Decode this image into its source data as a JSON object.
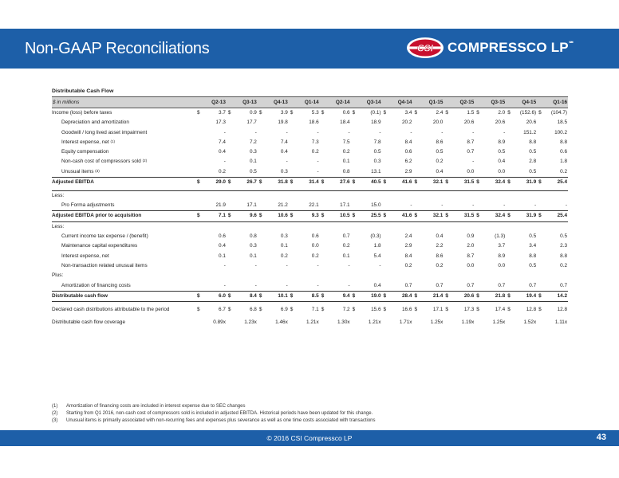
{
  "slide": {
    "title": "Non-GAAP Reconciliations",
    "logo_text": "COMPRESSCO LP",
    "logo_tm": "℠",
    "logo_badge": "CSI",
    "footer_text": "© 2016 CSI Compressco LP",
    "page_number": "43",
    "brand_color": "#1d5fa8"
  },
  "table": {
    "section_title": "Distributable Cash Flow",
    "units_label": "$ in millions",
    "columns": [
      "Q2-13",
      "Q3-13",
      "Q4-13",
      "Q1-14",
      "Q2-14",
      "Q3-14",
      "Q4-14",
      "Q1-15",
      "Q2-15",
      "Q3-15",
      "Q4-15",
      "Q1-16"
    ],
    "rows": [
      {
        "label": "Income (loss) before taxes",
        "values": [
          "3.7",
          "0.9",
          "3.9",
          "5.3",
          "0.6",
          "(0.1)",
          "3.4",
          "2.4",
          "1.5",
          "2.0",
          "(152.6)",
          "(104.7)"
        ],
        "dollar": true
      },
      {
        "label": "Depreciation and amortization",
        "values": [
          "17.3",
          "17.7",
          "19.8",
          "18.6",
          "18.4",
          "18.9",
          "20.2",
          "20.0",
          "20.6",
          "20.6",
          "20.6",
          "18.5"
        ],
        "indent": true
      },
      {
        "label": "Goodwill / long lived asset impairment",
        "values": [
          "-",
          "-",
          "-",
          "-",
          "-",
          "-",
          "-",
          "-",
          "-",
          "-",
          "151.2",
          "100.2"
        ],
        "indent": true
      },
      {
        "label": "Interest expense, net",
        "sup": "(1)",
        "values": [
          "7.4",
          "7.2",
          "7.4",
          "7.3",
          "7.5",
          "7.8",
          "8.4",
          "8.6",
          "8.7",
          "8.9",
          "8.8",
          "8.8"
        ],
        "indent": true
      },
      {
        "label": "Equity compensation",
        "values": [
          "0.4",
          "0.3",
          "0.4",
          "0.2",
          "0.2",
          "0.5",
          "0.6",
          "0.5",
          "0.7",
          "0.5",
          "0.5",
          "0.6"
        ],
        "indent": true
      },
      {
        "label": "Non-cash cost of compressors sold",
        "sup": "(2)",
        "values": [
          "-",
          "0.1",
          "-",
          "-",
          "0.1",
          "0.3",
          "6.2",
          "0.2",
          "-",
          "0.4",
          "2.8",
          "1.8"
        ],
        "indent": true
      },
      {
        "label": "Unusual items",
        "sup": "(3)",
        "values": [
          "0.2",
          "0.5",
          "0.3",
          "-",
          "0.8",
          "13.1",
          "2.9",
          "0.4",
          "0.0",
          "0.0",
          "0.5",
          "0.2"
        ],
        "indent": true
      },
      {
        "label": "Adjusted EBITDA",
        "values": [
          "29.0",
          "26.7",
          "31.8",
          "31.4",
          "27.6",
          "40.5",
          "41.6",
          "32.1",
          "31.5",
          "32.4",
          "31.9",
          "25.4"
        ],
        "dollar": true,
        "bold": true,
        "style": "topline"
      },
      {
        "gap": true
      },
      {
        "label": "Less:",
        "values": [],
        "style": "topline"
      },
      {
        "label": "Pro Forma adjustments",
        "values": [
          "21.9",
          "17.1",
          "21.2",
          "22.1",
          "17.1",
          "15.0",
          "-",
          "-",
          "-",
          "-",
          "-",
          "-"
        ],
        "indent": true
      },
      {
        "label": "Adjusted EBITDA prior to acquisition",
        "values": [
          "7.1",
          "9.6",
          "10.6",
          "9.3",
          "10.5",
          "25.5",
          "41.6",
          "32.1",
          "31.5",
          "32.4",
          "31.9",
          "25.4"
        ],
        "dollar": true,
        "bold": true,
        "style": "boxed"
      },
      {
        "label": "Less:",
        "values": []
      },
      {
        "label": "Current income tax expense / (benefit)",
        "values": [
          "0.6",
          "0.8",
          "0.3",
          "0.6",
          "0.7",
          "(0.3)",
          "2.4",
          "0.4",
          "0.9",
          "(1.3)",
          "0.5",
          "0.5"
        ],
        "indent": true
      },
      {
        "label": "Maintenance capital expenditures",
        "values": [
          "0.4",
          "0.3",
          "0.1",
          "0.0",
          "0.2",
          "1.8",
          "2.9",
          "2.2",
          "2.0",
          "3.7",
          "3.4",
          "2.3"
        ],
        "indent": true
      },
      {
        "label": "Interest expense, net",
        "values": [
          "0.1",
          "0.1",
          "0.2",
          "0.2",
          "0.1",
          "5.4",
          "8.4",
          "8.6",
          "8.7",
          "8.9",
          "8.8",
          "8.8"
        ],
        "indent": true
      },
      {
        "label": "Non-transaction related unusual items",
        "values": [
          "-",
          "-",
          "-",
          "-",
          "-",
          "-",
          "0.2",
          "0.2",
          "0.0",
          "0.0",
          "0.5",
          "0.2"
        ],
        "indent": true
      },
      {
        "label": "Plus:",
        "values": []
      },
      {
        "label": "Amortization of financing costs",
        "values": [
          "-",
          "-",
          "-",
          "-",
          "-",
          "0.4",
          "0.7",
          "0.7",
          "0.7",
          "0.7",
          "0.7",
          "0.7"
        ],
        "indent": true
      },
      {
        "label": "Distributable cash flow",
        "values": [
          "6.0",
          "8.4",
          "10.1",
          "8.5",
          "9.4",
          "19.0",
          "28.4",
          "21.4",
          "20.6",
          "21.8",
          "19.4",
          "14.2"
        ],
        "dollar": true,
        "bold": true,
        "style": "boxed"
      },
      {
        "gap": true
      },
      {
        "label": "Declared cash distributions attributable to the period",
        "values": [
          "6.7",
          "6.8",
          "6.9",
          "7.1",
          "7.2",
          "15.6",
          "16.6",
          "17.1",
          "17.3",
          "17.4",
          "12.8",
          "12.8"
        ],
        "dollar": true
      },
      {
        "gap": true
      },
      {
        "label": "Distributable cash flow coverage",
        "values": [
          "0.89x",
          "1.23x",
          "1.46x",
          "1.21x",
          "1.30x",
          "1.21x",
          "1.71x",
          "1.25x",
          "1.19x",
          "1.25x",
          "1.52x",
          "1.11x"
        ]
      }
    ]
  },
  "footnotes": [
    {
      "num": "(1)",
      "text": "Amortization of financing costs are included in interest expense due to SEC changes"
    },
    {
      "num": "(2)",
      "text": "Starting from Q1 2016, non-cash cost of compressors sold is included in adjusted EBITDA.  Historical periods have been updated for this change."
    },
    {
      "num": "(3)",
      "text": "Unusual items is primarily associated with non-recurring fees and expenses plus severance as well as one time costs associated with transactions"
    }
  ]
}
